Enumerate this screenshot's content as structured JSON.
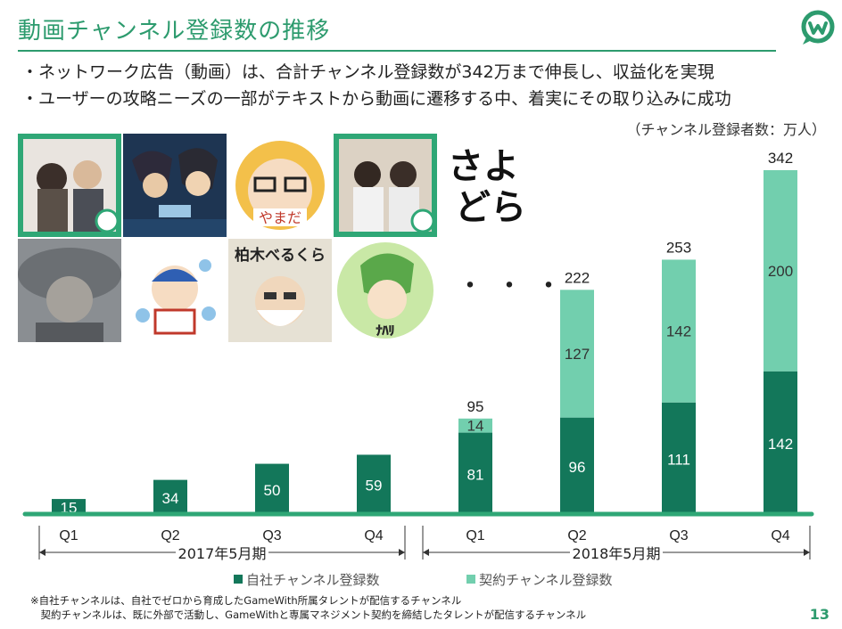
{
  "title": "動画チャンネル登録数の推移",
  "bullets": [
    "・ネットワーク広告（動画）は、合計チャンネル登録数が342万まで伸長し、収益化を実現",
    "・ユーザーの攻略ニーズの一部がテキストから動画に遷移する中、着実にその取り込みに成功"
  ],
  "unit_note": "（チャンネル登録者数：万人）",
  "thumbnail_texts": {
    "yamada": "やまだ",
    "sayodora_top": "さよ",
    "sayodora_bottom": "どら",
    "kashiwagi": "柏木べるくら",
    "nari": "ﾅﾊﾘ"
  },
  "ellipsis": "・・・",
  "legend": {
    "own": "自社チャンネル登録数",
    "contract": "契約チャンネル登録数"
  },
  "footnote": [
    "※自社チャンネルは、自社でゼロから育成したGameWith所属タレントが配信するチャンネル",
    "　契約チャンネルは、既に外部で活動し、GameWithと専属マネジメント契約を締結したタレントが配信するチャンネル"
  ],
  "page_number": "13",
  "colors": {
    "brand": "#2d9b6e",
    "own": "#13775a",
    "contract": "#72cfae",
    "baseline": "#2fa776"
  },
  "chart_data": {
    "type": "bar",
    "stacked": true,
    "categories": [
      "Q1",
      "Q2",
      "Q3",
      "Q4",
      "Q1",
      "Q2",
      "Q3",
      "Q4"
    ],
    "groups": [
      {
        "label": "2017年5月期",
        "categories": [
          0,
          3
        ]
      },
      {
        "label": "2018年5月期",
        "categories": [
          4,
          7
        ]
      }
    ],
    "series": [
      {
        "name": "自社チャンネル登録数",
        "values": [
          15,
          34,
          50,
          59,
          81,
          96,
          111,
          142
        ]
      },
      {
        "name": "契約チャンネル登録数",
        "values": [
          0,
          0,
          0,
          0,
          14,
          127,
          142,
          200
        ]
      }
    ],
    "totals": [
      null,
      null,
      null,
      null,
      95,
      222,
      253,
      342
    ],
    "ylim": [
      0,
      342
    ],
    "unit": "万人"
  }
}
